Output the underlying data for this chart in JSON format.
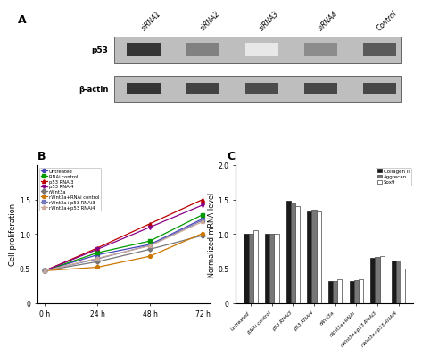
{
  "panel_A": {
    "label": "A",
    "blot_labels": [
      "siRNA1",
      "siRNA2",
      "siRNA3",
      "siRNA4",
      "Control"
    ],
    "row_labels": [
      "p53",
      "β-actin"
    ],
    "p53_intensities": [
      0.88,
      0.55,
      0.1,
      0.5,
      0.72
    ],
    "actin_intensities": [
      0.88,
      0.82,
      0.78,
      0.8,
      0.8
    ],
    "blot_bg": "#c8c8c8",
    "band_color_base": "#1a1a1a"
  },
  "panel_B": {
    "label": "B",
    "ylabel": "Cell proliferation",
    "xticklabels": [
      "0 h",
      "24 h",
      "48 h",
      "72 h"
    ],
    "xvals": [
      0,
      1,
      2,
      3
    ],
    "ylim": [
      0,
      2.0
    ],
    "yticks": [
      0,
      0.5,
      1.0,
      1.5
    ],
    "series": [
      {
        "label": "Untreated",
        "color": "#4444bb",
        "marker": "o",
        "values": [
          0.47,
          0.7,
          0.85,
          1.22
        ]
      },
      {
        "label": "RNAi control",
        "color": "#009900",
        "marker": "s",
        "values": [
          0.47,
          0.73,
          0.9,
          1.28
        ]
      },
      {
        "label": "p53 RNAi3",
        "color": "#bb0000",
        "marker": "^",
        "values": [
          0.47,
          0.8,
          1.15,
          1.5
        ]
      },
      {
        "label": "p53 RNAi4",
        "color": "#880088",
        "marker": "v",
        "values": [
          0.47,
          0.78,
          1.1,
          1.42
        ]
      },
      {
        "label": "rWnt3a",
        "color": "#777777",
        "marker": "D",
        "values": [
          0.47,
          0.6,
          0.78,
          0.98
        ]
      },
      {
        "label": "rWnt3a+RNAi control",
        "color": "#cc7700",
        "marker": "o",
        "values": [
          0.47,
          0.52,
          0.68,
          1.01
        ]
      },
      {
        "label": "rWnt3a+p53 RNAi3",
        "color": "#7777bb",
        "marker": "s",
        "values": [
          0.47,
          0.64,
          0.84,
          1.2
        ]
      },
      {
        "label": "rWnt3a+p53 RNAi4",
        "color": "#ccaa99",
        "marker": "^",
        "values": [
          0.47,
          0.65,
          0.83,
          1.18
        ]
      }
    ]
  },
  "panel_C": {
    "label": "C",
    "ylabel": "Normalized mRNA level",
    "ylim": [
      0,
      2.0
    ],
    "yticks": [
      0,
      0.5,
      1.0,
      1.5,
      2.0
    ],
    "categories": [
      "Untreated",
      "RNAi control",
      "p53 RNAi3",
      "p53 RNAi4",
      "rWnt3a",
      "rWnt3a+RNAi",
      "rWnt3a+p53 RNAi3",
      "rWnt3a+p53 RNAi4"
    ],
    "series": [
      {
        "label": "Collagen II",
        "color": "#1a1a1a",
        "edgecolor": "#1a1a1a",
        "values": [
          1.0,
          1.0,
          1.48,
          1.33,
          0.32,
          0.32,
          0.65,
          0.62
        ]
      },
      {
        "label": "Aggrecan",
        "color": "#777777",
        "edgecolor": "#444444",
        "values": [
          1.0,
          1.0,
          1.45,
          1.35,
          0.32,
          0.33,
          0.67,
          0.62
        ]
      },
      {
        "label": "Sox9",
        "color": "#ffffff",
        "edgecolor": "#444444",
        "values": [
          1.05,
          1.0,
          1.4,
          1.33,
          0.35,
          0.35,
          0.68,
          0.5
        ]
      }
    ],
    "bar_width": 0.22
  }
}
